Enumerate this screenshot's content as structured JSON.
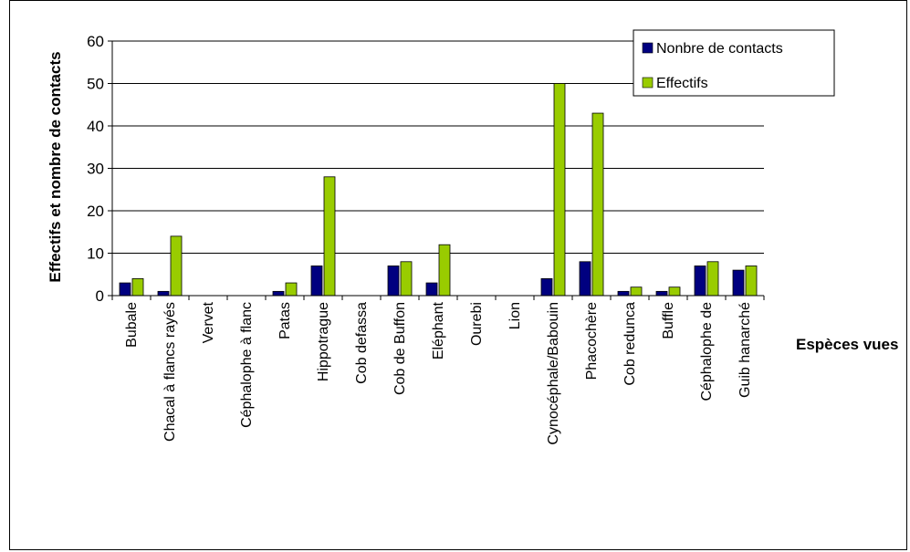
{
  "chart_data": {
    "type": "bar",
    "title": "",
    "xlabel": "Espèces vues",
    "ylabel": "Effectifs et nombre de contacts",
    "ylim": [
      0,
      60
    ],
    "yticks": [
      "0",
      "10",
      "20",
      "30",
      "40",
      "50",
      "60"
    ],
    "grid": "horizontal",
    "legend_position": "top-right",
    "categories": [
      "Bubale",
      "Chacal à flancs rayés",
      "Vervet",
      "Céphalophe à flanc",
      "Patas",
      "Hippotrague",
      "Cob defassa",
      "Cob de Buffon",
      "Eléphant",
      "Ourebi",
      "Lion",
      "Cynocéphale/Babouin",
      "Phacochère",
      "Cob redunca",
      "Buffle",
      "Céphalophe de",
      "Guib hanarché"
    ],
    "series": [
      {
        "name": "Nonbre de contacts",
        "color": "#000080",
        "values": [
          3,
          1,
          0,
          0,
          1,
          7,
          0,
          7,
          3,
          0,
          0,
          4,
          8,
          1,
          1,
          7,
          6
        ]
      },
      {
        "name": "Effectifs",
        "color": "#99CC00",
        "values": [
          4,
          14,
          0,
          0,
          3,
          28,
          0,
          8,
          12,
          0,
          0,
          50,
          43,
          2,
          2,
          8,
          7
        ]
      }
    ]
  }
}
